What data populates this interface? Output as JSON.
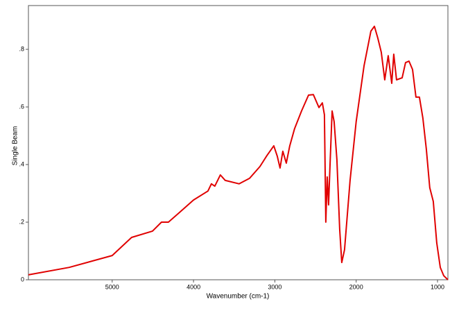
{
  "chart_data": {
    "type": "line",
    "x_label": "Wavenumber (cm-1)",
    "y_label": "Single Beam",
    "xlim": [
      6030,
      872
    ],
    "ylim": [
      0,
      0.952
    ],
    "xticks": [
      5000,
      4000,
      3000,
      2000,
      1000
    ],
    "yticks": [
      0,
      {
        "value": 0.2,
        "label": ".2"
      },
      {
        "value": 0.4,
        "label": ".4"
      },
      {
        "value": 0.6,
        "label": ".6"
      },
      {
        "value": 0.8,
        "label": ".8"
      }
    ],
    "color": "#e00000",
    "x": [
      6030,
      5529,
      5000,
      4761,
      4505,
      4394,
      4309,
      4164,
      4000,
      3823,
      3780,
      3738,
      3670,
      3610,
      3439,
      3311,
      3183,
      3098,
      3013,
      2970,
      2936,
      2902,
      2859,
      2817,
      2757,
      2672,
      2586,
      2527,
      2458,
      2416,
      2390,
      2373,
      2356,
      2339,
      2322,
      2296,
      2271,
      2237,
      2203,
      2177,
      2143,
      2075,
      2000,
      1904,
      1819,
      1776,
      1734,
      1691,
      1649,
      1606,
      1563,
      1538,
      1504,
      1435,
      1393,
      1350,
      1307,
      1265,
      1222,
      1180,
      1137,
      1095,
      1052,
      1009,
      966,
      923,
      872
    ],
    "values": [
      0.017,
      0.043,
      0.084,
      0.147,
      0.169,
      0.2,
      0.2,
      0.236,
      0.277,
      0.308,
      0.333,
      0.325,
      0.364,
      0.345,
      0.333,
      0.352,
      0.393,
      0.431,
      0.465,
      0.429,
      0.388,
      0.446,
      0.405,
      0.465,
      0.525,
      0.586,
      0.641,
      0.643,
      0.598,
      0.614,
      0.573,
      0.2,
      0.357,
      0.26,
      0.393,
      0.586,
      0.549,
      0.417,
      0.176,
      0.06,
      0.104,
      0.345,
      0.549,
      0.742,
      0.863,
      0.88,
      0.839,
      0.79,
      0.694,
      0.778,
      0.682,
      0.783,
      0.694,
      0.701,
      0.754,
      0.759,
      0.73,
      0.634,
      0.634,
      0.561,
      0.453,
      0.32,
      0.272,
      0.128,
      0.043,
      0.014,
      0
    ]
  }
}
